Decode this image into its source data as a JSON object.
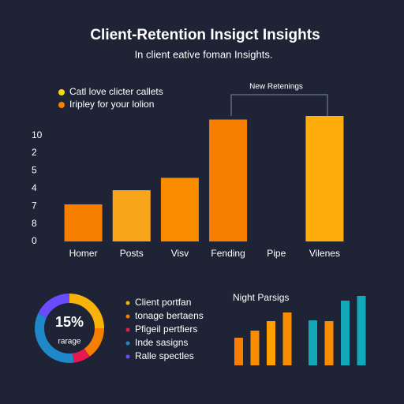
{
  "chart_data": [
    {
      "type": "bar",
      "title": "Client-Retention Insigct Insights",
      "subtitle": "In client eative foman Insights.",
      "legend": [
        {
          "name": "Catl love clicter callets",
          "color": "#f5d90a"
        },
        {
          "name": "Iripley for your lolion",
          "color": "#f77f00"
        }
      ],
      "annotation": "New Retenings",
      "categories": [
        "Homer",
        "Posts",
        "Visv",
        "Fending",
        "Pipe",
        "Vilenes"
      ],
      "values": [
        2.1,
        2.9,
        3.6,
        6.9,
        0,
        7.1
      ],
      "colors": [
        "#f77f00",
        "#f9a51a",
        "#fb8c00",
        "#f77f00",
        "#f77f00",
        "#ffad0a"
      ],
      "ylim": [
        0,
        7.1
      ],
      "yticks": [
        0,
        {
          "value": 1,
          "label": "8"
        },
        {
          "value": 2,
          "label": "7"
        },
        {
          "value": 3,
          "label": "4"
        },
        {
          "value": 4,
          "label": "5"
        },
        {
          "value": 5,
          "label": "2"
        },
        {
          "value": 6,
          "label": "10"
        }
      ]
    },
    {
      "type": "donut",
      "center_label": "15%",
      "center_sublabel": "rarage",
      "series": [
        {
          "name": "Client portfan",
          "color": "#f9b208",
          "value": 25
        },
        {
          "name": "tonage bertaens",
          "color": "#f77f00",
          "value": 15
        },
        {
          "name": "Pfigeil pertfiers",
          "color": "#e8194f",
          "value": 8
        },
        {
          "name": "Inde sasigns",
          "color": "#1e88c8",
          "value": 34
        },
        {
          "name": "Ralle spectles",
          "color": "#6a4cff",
          "value": 18
        }
      ]
    },
    {
      "type": "bar",
      "title": "Night Parsigs",
      "values": [
        35,
        44,
        56,
        67,
        57,
        56,
        82,
        88
      ],
      "colors": [
        "#f77f00",
        "#f98c00",
        "#ffa000",
        "#f98c00",
        "#12a8b8",
        "#f98c00",
        "#12a8b8",
        "#12a8b8"
      ],
      "ylim": [
        0,
        100
      ]
    }
  ]
}
